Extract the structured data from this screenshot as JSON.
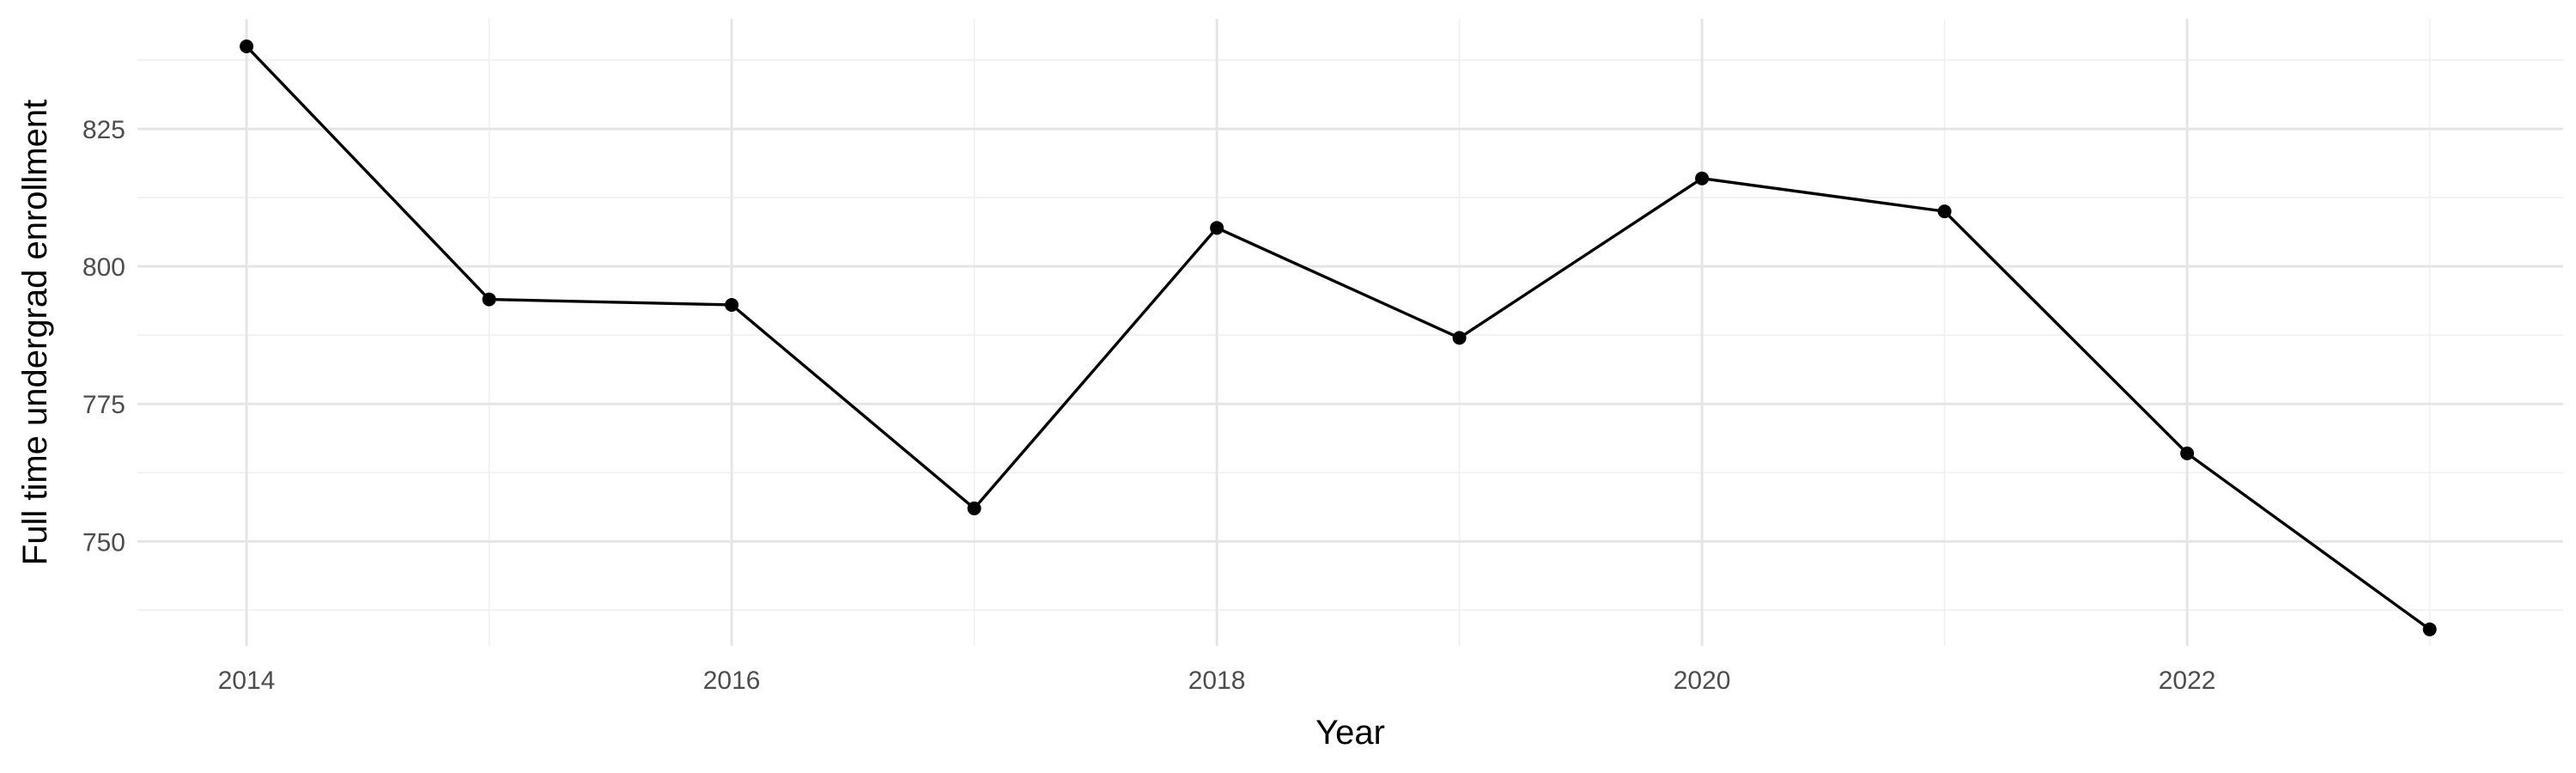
{
  "chart_data": {
    "type": "line",
    "xlabel": "Year",
    "ylabel": "Full time undergrad enrollment",
    "xlim": [
      2013.55,
      2023.55
    ],
    "ylim": [
      731,
      845
    ],
    "x_ticks": [
      2014,
      2016,
      2018,
      2020,
      2022
    ],
    "x_tick_labels": [
      "2014",
      "2016",
      "2018",
      "2020",
      "2022"
    ],
    "x_minor_ticks": [
      2015,
      2017,
      2019,
      2021,
      2023
    ],
    "y_ticks": [
      750,
      775,
      800,
      825
    ],
    "y_tick_labels": [
      "750",
      "775",
      "800",
      "825"
    ],
    "y_minor_ticks": [
      737.5,
      762.5,
      787.5,
      812.5,
      837.5
    ],
    "grid": true,
    "legend": "none",
    "series": [
      {
        "x": [
          2014,
          2015,
          2016,
          2017,
          2018,
          2019,
          2020,
          2021,
          2022,
          2023
        ],
        "values": [
          840,
          794,
          793,
          756,
          807,
          787,
          816,
          810,
          766,
          734
        ],
        "color": "#000000"
      }
    ]
  }
}
